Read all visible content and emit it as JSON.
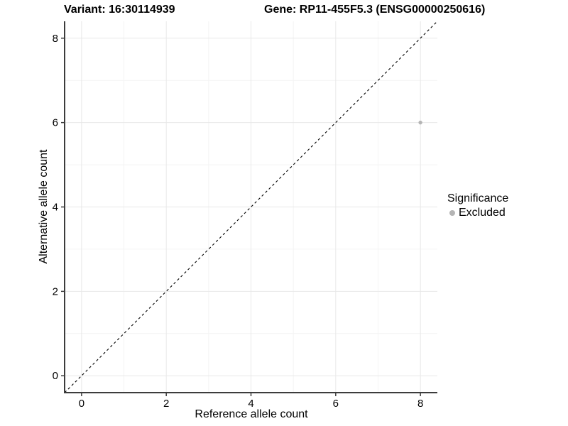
{
  "chart_data": {
    "type": "scatter",
    "titles": {
      "left": "Variant: 16:30114939",
      "right": "Gene: RP11-455F5.3 (ENSG00000250616)"
    },
    "xlabel": "Reference allele count",
    "ylabel": "Alternative allele count",
    "xlim": [
      -0.4,
      8.4
    ],
    "ylim": [
      -0.4,
      8.4
    ],
    "x_major_ticks": [
      0,
      2,
      4,
      6,
      8
    ],
    "y_major_ticks": [
      0,
      2,
      4,
      6,
      8
    ],
    "x_minor_ticks": [
      1,
      3,
      5,
      7
    ],
    "y_minor_ticks": [
      1,
      3,
      5,
      7
    ],
    "grid": "major+minor",
    "points": [
      {
        "x": 8,
        "y": 6,
        "series": "Excluded"
      }
    ],
    "reference_line": {
      "type": "identity",
      "style": "dashed",
      "from": [
        -0.4,
        -0.4
      ],
      "to": [
        8.4,
        8.4
      ]
    },
    "legend": {
      "title": "Significance",
      "position": "right",
      "entries": [
        {
          "label": "Excluded",
          "color": "#b5b5b5"
        }
      ]
    },
    "colors": {
      "point_excluded": "#b5b5b5",
      "axis_line": "#3c3c3c",
      "tick_mark": "#3c3c3c",
      "grid_major": "#e8e8e8",
      "grid_minor": "#f4f4f4",
      "reference_line": "#000000",
      "text": "#000000",
      "background": "#ffffff"
    }
  }
}
